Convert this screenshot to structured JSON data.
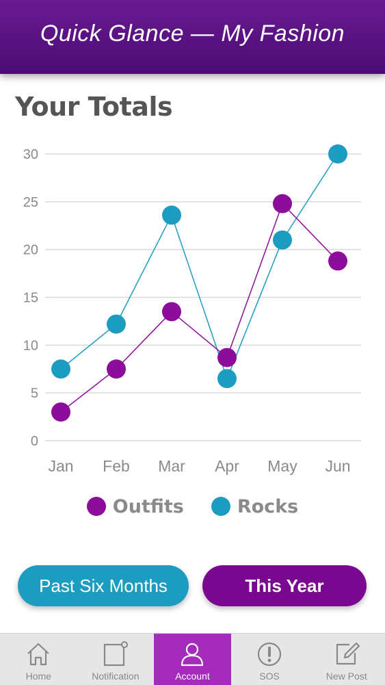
{
  "header": {
    "title": "Quick Glance — My Fashion"
  },
  "section": {
    "title": "Your Totals"
  },
  "colors": {
    "outfits": "#8b0d99",
    "rocks": "#1c9cc0",
    "header": "#5a1183",
    "active_nav": "#a52bbd",
    "grid": "#d9d9d9",
    "tick_text": "#8a8a8a"
  },
  "chart_data": {
    "type": "line",
    "categories": [
      "Jan",
      "Feb",
      "Mar",
      "Apr",
      "May",
      "Jun"
    ],
    "series": [
      {
        "name": "Outfits",
        "values": [
          3,
          7.5,
          13.5,
          8.7,
          24.8,
          18.8
        ]
      },
      {
        "name": "Rocks",
        "values": [
          7.5,
          12.2,
          23.6,
          6.5,
          21,
          30
        ]
      }
    ],
    "yticks": [
      0,
      5,
      10,
      15,
      20,
      25,
      30
    ],
    "ylim": [
      0,
      30
    ],
    "grid": true,
    "legend": "bottom-center",
    "markers": "filled-circle"
  },
  "buttons": {
    "past_six_months": "Past Six Months",
    "this_year": "This Year"
  },
  "nav": {
    "items": [
      {
        "label": "Home",
        "icon": "home-icon",
        "active": false
      },
      {
        "label": "Notification",
        "icon": "notification-icon",
        "active": false
      },
      {
        "label": "Account",
        "icon": "account-icon",
        "active": true
      },
      {
        "label": "SOS",
        "icon": "sos-icon",
        "active": false
      },
      {
        "label": "New Post",
        "icon": "new-post-icon",
        "active": false
      }
    ]
  }
}
